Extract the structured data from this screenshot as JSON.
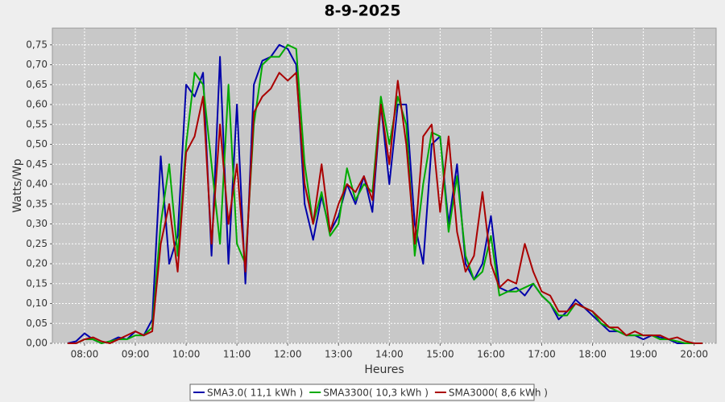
{
  "chart_data": {
    "type": "line",
    "title": "8-9-2025",
    "x_label": "Heures",
    "y_label": "Watts/Wp",
    "x": [
      "07:40",
      "07:50",
      "08:00",
      "08:10",
      "08:20",
      "08:30",
      "08:40",
      "08:50",
      "09:00",
      "09:10",
      "09:20",
      "09:30",
      "09:40",
      "09:50",
      "10:00",
      "10:10",
      "10:20",
      "10:30",
      "10:40",
      "10:50",
      "11:00",
      "11:10",
      "11:20",
      "11:30",
      "11:40",
      "11:50",
      "12:00",
      "12:10",
      "12:20",
      "12:30",
      "12:40",
      "12:50",
      "13:00",
      "13:10",
      "13:20",
      "13:30",
      "13:40",
      "13:50",
      "14:00",
      "14:10",
      "14:20",
      "14:30",
      "14:40",
      "14:50",
      "15:00",
      "15:10",
      "15:20",
      "15:30",
      "15:40",
      "15:50",
      "16:00",
      "16:10",
      "16:20",
      "16:30",
      "16:40",
      "16:50",
      "17:00",
      "17:10",
      "17:20",
      "17:30",
      "17:40",
      "17:50",
      "18:00",
      "18:10",
      "18:20",
      "18:30",
      "18:40",
      "18:50",
      "19:00",
      "19:10",
      "19:20",
      "19:30",
      "19:40",
      "19:50",
      "20:00",
      "20:10"
    ],
    "series": [
      {
        "name": "SMA3.0( 11,1 kWh )",
        "color": "#0000aa",
        "values": [
          0,
          0.005,
          0.025,
          0.01,
          0,
          0.005,
          0.015,
          0.01,
          0.03,
          0.02,
          0.06,
          0.47,
          0.2,
          0.27,
          0.65,
          0.62,
          0.68,
          0.22,
          0.72,
          0.2,
          0.6,
          0.15,
          0.65,
          0.71,
          0.72,
          0.75,
          0.74,
          0.7,
          0.35,
          0.26,
          0.37,
          0.28,
          0.32,
          0.4,
          0.35,
          0.42,
          0.33,
          0.6,
          0.4,
          0.6,
          0.6,
          0.3,
          0.2,
          0.5,
          0.52,
          0.3,
          0.45,
          0.2,
          0.16,
          0.2,
          0.32,
          0.14,
          0.13,
          0.14,
          0.12,
          0.15,
          0.12,
          0.1,
          0.06,
          0.08,
          0.11,
          0.09,
          0.07,
          0.05,
          0.03,
          0.03,
          0.02,
          0.02,
          0.01,
          0.02,
          0.015,
          0.01,
          0,
          0,
          0,
          0
        ]
      },
      {
        "name": "SMA3300( 10,3 kWh )",
        "color": "#00aa00",
        "values": [
          0,
          0,
          0.01,
          0.01,
          0,
          0.005,
          0.01,
          0.01,
          0.02,
          0.02,
          0.04,
          0.3,
          0.45,
          0.22,
          0.5,
          0.68,
          0.65,
          0.45,
          0.25,
          0.65,
          0.25,
          0.2,
          0.55,
          0.7,
          0.72,
          0.72,
          0.75,
          0.74,
          0.45,
          0.3,
          0.38,
          0.27,
          0.3,
          0.44,
          0.36,
          0.4,
          0.38,
          0.62,
          0.5,
          0.62,
          0.55,
          0.22,
          0.4,
          0.53,
          0.52,
          0.28,
          0.42,
          0.22,
          0.16,
          0.18,
          0.27,
          0.12,
          0.13,
          0.13,
          0.14,
          0.15,
          0.12,
          0.1,
          0.07,
          0.07,
          0.1,
          0.09,
          0.08,
          0.05,
          0.04,
          0.03,
          0.02,
          0.02,
          0.02,
          0.02,
          0.01,
          0.01,
          0.005,
          0,
          0,
          0
        ]
      },
      {
        "name": "SMA3000( 8,6 kWh )",
        "color": "#aa0000",
        "values": [
          0,
          0,
          0.01,
          0.015,
          0.005,
          0,
          0.01,
          0.02,
          0.03,
          0.02,
          0.03,
          0.25,
          0.35,
          0.18,
          0.48,
          0.52,
          0.62,
          0.25,
          0.55,
          0.3,
          0.45,
          0.18,
          0.58,
          0.62,
          0.64,
          0.68,
          0.66,
          0.68,
          0.4,
          0.3,
          0.45,
          0.28,
          0.35,
          0.4,
          0.38,
          0.42,
          0.36,
          0.6,
          0.45,
          0.66,
          0.5,
          0.25,
          0.52,
          0.55,
          0.33,
          0.52,
          0.28,
          0.18,
          0.22,
          0.38,
          0.2,
          0.14,
          0.16,
          0.15,
          0.25,
          0.18,
          0.13,
          0.12,
          0.08,
          0.08,
          0.1,
          0.09,
          0.08,
          0.06,
          0.04,
          0.04,
          0.02,
          0.03,
          0.02,
          0.02,
          0.02,
          0.01,
          0.015,
          0.005,
          0,
          0
        ]
      }
    ],
    "xlim": [
      "07:22",
      "20:26"
    ],
    "xticks": [
      "08:00",
      "09:00",
      "10:00",
      "11:00",
      "12:00",
      "13:00",
      "14:00",
      "15:00",
      "16:00",
      "17:00",
      "18:00",
      "19:00",
      "20:00"
    ],
    "ylim": [
      0,
      0.792
    ],
    "yticks": [
      {
        "value": 0,
        "label": "0,00"
      },
      {
        "value": 0.05,
        "label": "0,05"
      },
      {
        "value": 0.1,
        "label": "0,10"
      },
      {
        "value": 0.15,
        "label": "0,15"
      },
      {
        "value": 0.2,
        "label": "0,20"
      },
      {
        "value": 0.25,
        "label": "0,25"
      },
      {
        "value": 0.3,
        "label": "0,30"
      },
      {
        "value": 0.35,
        "label": "0,35"
      },
      {
        "value": 0.4,
        "label": "0,40"
      },
      {
        "value": 0.45,
        "label": "0,45"
      },
      {
        "value": 0.5,
        "label": "0,50"
      },
      {
        "value": 0.55,
        "label": "0,55"
      },
      {
        "value": 0.6,
        "label": "0,60"
      },
      {
        "value": 0.65,
        "label": "0,65"
      },
      {
        "value": 0.7,
        "label": "0,70"
      },
      {
        "value": 0.75,
        "label": "0,75"
      }
    ],
    "grid": true,
    "legend": "bottom"
  }
}
